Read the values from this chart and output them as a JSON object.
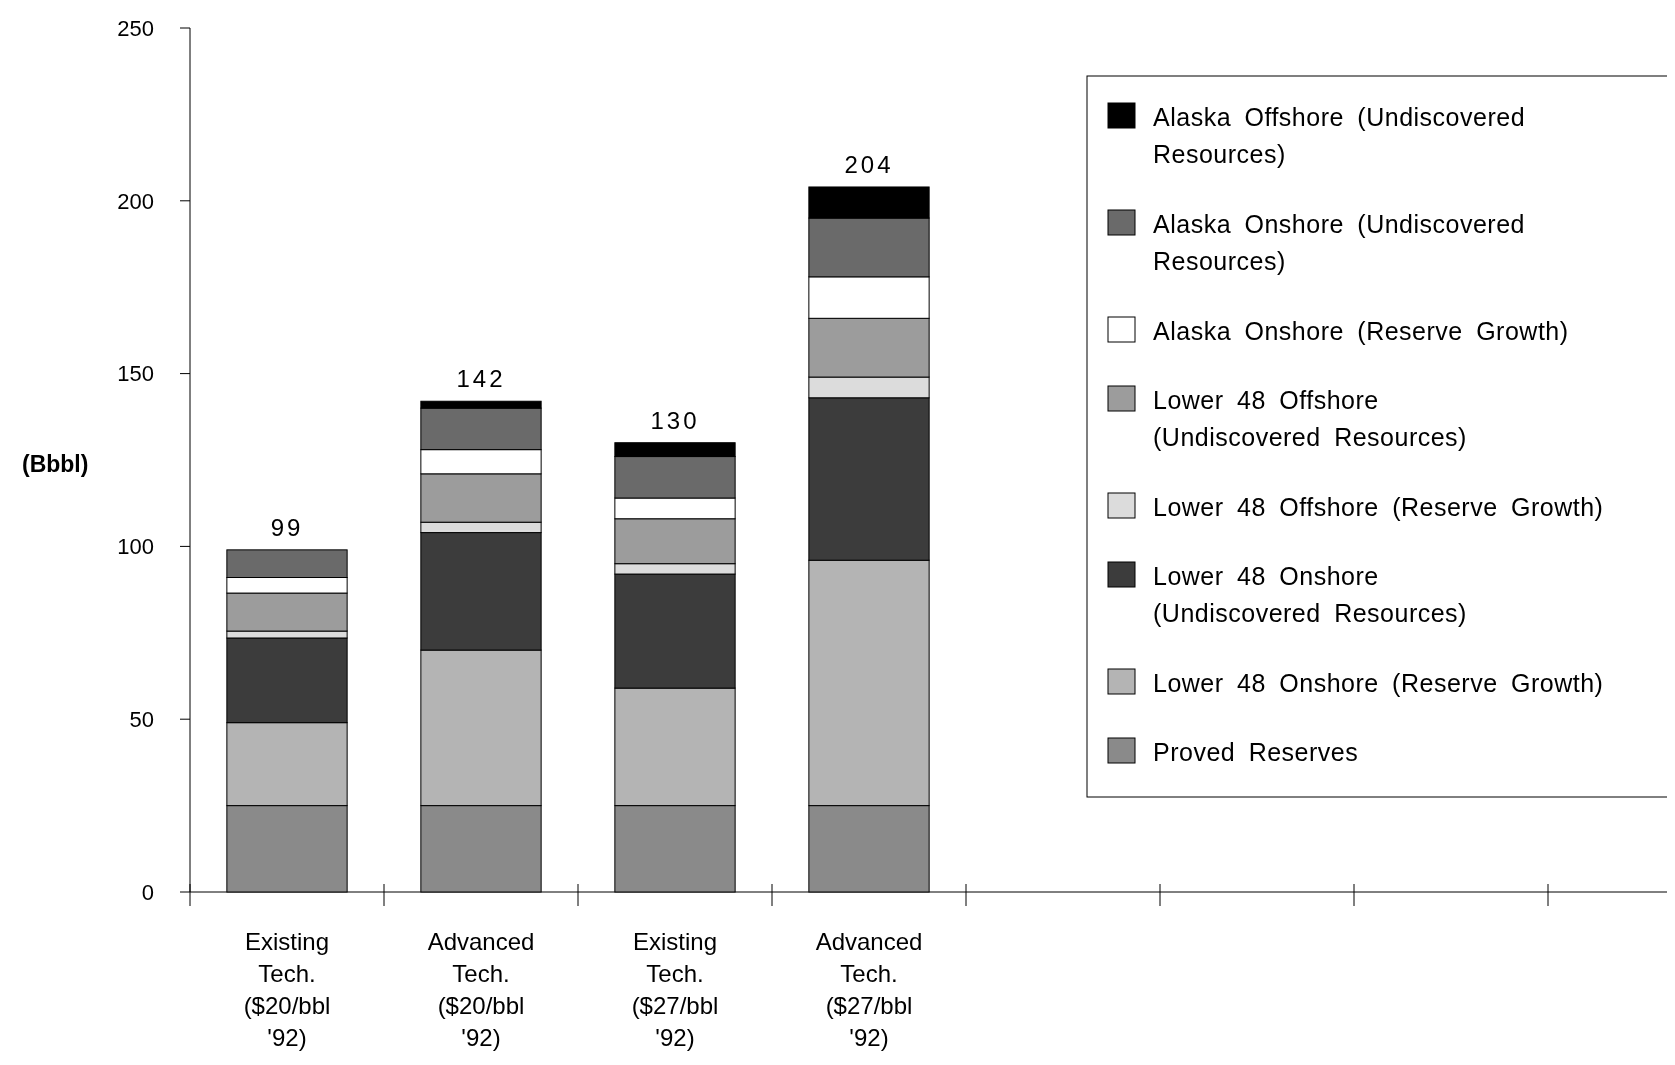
{
  "chart_data": {
    "type": "bar",
    "stacked": true,
    "ylabel": "(Bbbl)",
    "categories": [
      "Existing Tech. ($20/bbl '92)",
      "Advanced Tech. ($20/bbl '92)",
      "Existing Tech. ($27/bbl '92)",
      "Advanced Tech. ($27/bbl '92)",
      null,
      null,
      null,
      null
    ],
    "series": [
      {
        "name": "Proved Reserves",
        "color": "#8a8a8a",
        "values": [
          25,
          25,
          25,
          25,
          null,
          null,
          null,
          null
        ]
      },
      {
        "name": "Lower 48 Onshore (Reserve Growth)",
        "color": "#b4b4b4",
        "values": [
          24,
          45,
          34,
          71,
          null,
          null,
          null,
          null
        ]
      },
      {
        "name": "Lower 48 Onshore (Undiscovered Resources)",
        "color": "#3c3c3c",
        "values": [
          24.5,
          34,
          33,
          47,
          null,
          null,
          null,
          null
        ]
      },
      {
        "name": "Lower 48 Offshore (Reserve Growth)",
        "color": "#dcdcdc",
        "values": [
          2,
          3,
          3,
          6,
          null,
          null,
          null,
          null
        ]
      },
      {
        "name": "Lower 48 Offshore (Undiscovered Resources)",
        "color": "#9c9c9c",
        "values": [
          11,
          14,
          13,
          17,
          null,
          null,
          null,
          null
        ]
      },
      {
        "name": "Alaska Onshore (Reserve Growth)",
        "color": "#ffffff",
        "values": [
          4.5,
          7,
          6,
          12,
          null,
          null,
          null,
          null
        ]
      },
      {
        "name": "Alaska Onshore (Undiscovered Resources)",
        "color": "#6a6a6a",
        "values": [
          8,
          12,
          12,
          17,
          null,
          null,
          null,
          null
        ]
      },
      {
        "name": "Alaska Offshore (Undiscovered Resources)",
        "color": "#000000",
        "values": [
          0,
          2,
          4,
          9,
          null,
          null,
          null,
          null
        ]
      }
    ],
    "totals": [
      "99",
      "142",
      "130",
      "204",
      null,
      null,
      null,
      null
    ],
    "ylim": [
      0,
      250
    ],
    "yticks": [
      0,
      50,
      100,
      150,
      200,
      250
    ],
    "grid": false,
    "legend": "top right"
  }
}
